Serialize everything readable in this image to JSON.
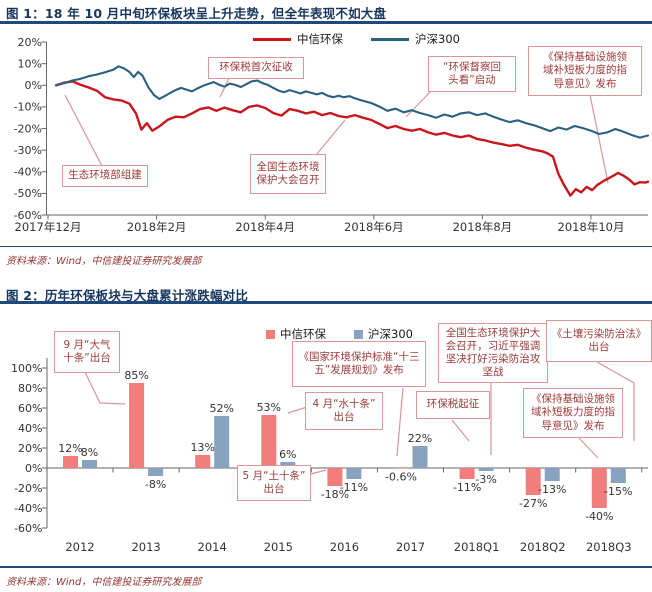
{
  "sources": {
    "fig1": "资料来源：Wind，中信建投证券研究发展部",
    "fig2": "资料来源：Wind，中信建投证券研究发展部"
  },
  "chart_data": [
    {
      "type": "line",
      "title": "图 1：18 年 10 月中旬环保板块呈上升走势，但全年表现不如大盘",
      "x_labels": [
        "2017年12月",
        "2018年2月",
        "2018年4月",
        "2018年6月",
        "2018年8月",
        "2018年10月"
      ],
      "y_ticks": [
        "20%",
        "10%",
        "0%",
        "-10%",
        "-20%",
        "-30%",
        "-40%",
        "-50%",
        "-60%"
      ],
      "ylim": [
        -60,
        20
      ],
      "legend_position": "top",
      "grid": false,
      "series": [
        {
          "name": "中信环保",
          "color": "#C8161D",
          "points": [
            [
              0.15,
              0
            ],
            [
              0.3,
              1.2
            ],
            [
              0.45,
              1.8
            ],
            [
              0.6,
              0.3
            ],
            [
              0.75,
              -1
            ],
            [
              0.9,
              -2.5
            ],
            [
              1.05,
              -5.5
            ],
            [
              1.2,
              -6.5
            ],
            [
              1.35,
              -7
            ],
            [
              1.5,
              -8.5
            ],
            [
              1.62,
              -13
            ],
            [
              1.72,
              -20.5
            ],
            [
              1.82,
              -17.5
            ],
            [
              1.92,
              -21
            ],
            [
              2.05,
              -19
            ],
            [
              2.2,
              -16
            ],
            [
              2.35,
              -14.5
            ],
            [
              2.5,
              -14.8
            ],
            [
              2.65,
              -13
            ],
            [
              2.8,
              -11
            ],
            [
              2.95,
              -10.2
            ],
            [
              3.1,
              -11.8
            ],
            [
              3.25,
              -10.3
            ],
            [
              3.4,
              -11.5
            ],
            [
              3.55,
              -12.5
            ],
            [
              3.7,
              -10
            ],
            [
              3.85,
              -9.3
            ],
            [
              4,
              -10.5
            ],
            [
              4.15,
              -12.8
            ],
            [
              4.3,
              -14
            ],
            [
              4.45,
              -11
            ],
            [
              4.6,
              -11.8
            ],
            [
              4.75,
              -13
            ],
            [
              4.9,
              -12.2
            ],
            [
              5.05,
              -13.8
            ],
            [
              5.2,
              -12.8
            ],
            [
              5.35,
              -14.2
            ],
            [
              5.5,
              -14.8
            ],
            [
              5.65,
              -13.8
            ],
            [
              5.8,
              -15
            ],
            [
              5.95,
              -16
            ],
            [
              6.1,
              -17.8
            ],
            [
              6.25,
              -19.8
            ],
            [
              6.4,
              -18.8
            ],
            [
              6.55,
              -20.2
            ],
            [
              6.7,
              -21
            ],
            [
              6.85,
              -20.2
            ],
            [
              7,
              -21.8
            ],
            [
              7.15,
              -22.8
            ],
            [
              7.3,
              -22
            ],
            [
              7.45,
              -23.2
            ],
            [
              7.6,
              -24
            ],
            [
              7.75,
              -23.2
            ],
            [
              7.9,
              -24.8
            ],
            [
              8.05,
              -25.5
            ],
            [
              8.2,
              -26.5
            ],
            [
              8.35,
              -27.2
            ],
            [
              8.5,
              -28
            ],
            [
              8.65,
              -27.5
            ],
            [
              8.8,
              -28.8
            ],
            [
              8.95,
              -29.8
            ],
            [
              9.1,
              -30.5
            ],
            [
              9.2,
              -31.5
            ],
            [
              9.3,
              -33
            ],
            [
              9.4,
              -41
            ],
            [
              9.5,
              -46
            ],
            [
              9.62,
              -51
            ],
            [
              9.72,
              -48
            ],
            [
              9.82,
              -49.5
            ],
            [
              9.92,
              -47
            ],
            [
              10.02,
              -48.5
            ],
            [
              10.12,
              -46
            ],
            [
              10.25,
              -44
            ],
            [
              10.4,
              -42
            ],
            [
              10.5,
              -40.5
            ],
            [
              10.6,
              -41.8
            ],
            [
              10.7,
              -43.5
            ],
            [
              10.8,
              -45.8
            ],
            [
              10.9,
              -44.8
            ],
            [
              11,
              -45
            ],
            [
              11.05,
              -44.6
            ]
          ]
        },
        {
          "name": "沪深300",
          "color": "#2B607F",
          "points": [
            [
              0.15,
              0
            ],
            [
              0.3,
              1
            ],
            [
              0.45,
              2.2
            ],
            [
              0.6,
              3
            ],
            [
              0.75,
              4.2
            ],
            [
              0.9,
              5
            ],
            [
              1.05,
              6
            ],
            [
              1.2,
              7.2
            ],
            [
              1.3,
              8.8
            ],
            [
              1.4,
              7.8
            ],
            [
              1.5,
              6.2
            ],
            [
              1.58,
              3.8
            ],
            [
              1.66,
              6.2
            ],
            [
              1.74,
              4.5
            ],
            [
              1.85,
              -1
            ],
            [
              1.95,
              -4.5
            ],
            [
              2.05,
              -6.3
            ],
            [
              2.15,
              -5
            ],
            [
              2.25,
              -3.5
            ],
            [
              2.35,
              -2.2
            ],
            [
              2.45,
              -1.2
            ],
            [
              2.55,
              -2
            ],
            [
              2.65,
              -2.8
            ],
            [
              2.75,
              -1.5
            ],
            [
              2.85,
              -0.3
            ],
            [
              2.95,
              0.6
            ],
            [
              3.05,
              1.5
            ],
            [
              3.15,
              0.3
            ],
            [
              3.25,
              -0.6
            ],
            [
              3.35,
              0.8
            ],
            [
              3.45,
              0.2
            ],
            [
              3.55,
              -0.8
            ],
            [
              3.65,
              0.5
            ],
            [
              3.75,
              1.8
            ],
            [
              3.85,
              2.2
            ],
            [
              3.95,
              1
            ],
            [
              4.05,
              0.2
            ],
            [
              4.15,
              -1.2
            ],
            [
              4.25,
              -2.5
            ],
            [
              4.35,
              -3.2
            ],
            [
              4.45,
              -2.2
            ],
            [
              4.55,
              -3
            ],
            [
              4.65,
              -3.8
            ],
            [
              4.75,
              -2.8
            ],
            [
              4.85,
              -3.5
            ],
            [
              4.95,
              -4.2
            ],
            [
              5.05,
              -3.5
            ],
            [
              5.15,
              -4.8
            ],
            [
              5.25,
              -5.5
            ],
            [
              5.35,
              -4.8
            ],
            [
              5.45,
              -5.5
            ],
            [
              5.55,
              -5
            ],
            [
              5.65,
              -6
            ],
            [
              5.75,
              -6.8
            ],
            [
              5.85,
              -7.5
            ],
            [
              5.95,
              -8.2
            ],
            [
              6.1,
              -9.8
            ],
            [
              6.25,
              -11.8
            ],
            [
              6.4,
              -10.8
            ],
            [
              6.55,
              -12.5
            ],
            [
              6.7,
              -11.5
            ],
            [
              6.85,
              -12.8
            ],
            [
              7,
              -13.8
            ],
            [
              7.15,
              -15
            ],
            [
              7.3,
              -13.5
            ],
            [
              7.45,
              -14.5
            ],
            [
              7.6,
              -13
            ],
            [
              7.75,
              -12.5
            ],
            [
              7.9,
              -13.8
            ],
            [
              8.05,
              -13
            ],
            [
              8.2,
              -14.5
            ],
            [
              8.35,
              -15.8
            ],
            [
              8.5,
              -17
            ],
            [
              8.65,
              -16.2
            ],
            [
              8.8,
              -17.5
            ],
            [
              8.95,
              -18.5
            ],
            [
              9.1,
              -19.8
            ],
            [
              9.25,
              -21.2
            ],
            [
              9.4,
              -19.5
            ],
            [
              9.55,
              -20.5
            ],
            [
              9.7,
              -18.8
            ],
            [
              9.85,
              -19.8
            ],
            [
              10,
              -21
            ],
            [
              10.15,
              -22.5
            ],
            [
              10.3,
              -21.8
            ],
            [
              10.45,
              -20.2
            ],
            [
              10.6,
              -21.5
            ],
            [
              10.75,
              -23
            ],
            [
              10.9,
              -24.2
            ],
            [
              11.05,
              -23.2
            ]
          ]
        }
      ],
      "annotations": [
        {
          "text": "生态环境部组建"
        },
        {
          "text": "环保税首次征收"
        },
        {
          "text": "全国生态环境\n保护大会召开"
        },
        {
          "text": "“环保督察回\n头看”启动"
        },
        {
          "text": "《保持基础设施领\n域补短板力度的指\n导意见》发布"
        }
      ]
    },
    {
      "type": "bar",
      "title": "图 2：历年环保板块与大盘累计涨跌幅对比",
      "categories": [
        "2012",
        "2013",
        "2014",
        "2015",
        "2016",
        "2017",
        "2018Q1",
        "2018Q2",
        "2018Q3"
      ],
      "y_ticks": [
        "100%",
        "80%",
        "60%",
        "40%",
        "20%",
        "0%",
        "-20%",
        "-40%",
        "-60%"
      ],
      "ylim": [
        -60,
        100
      ],
      "legend_position": "top",
      "grid": false,
      "series": [
        {
          "name": "中信环保",
          "color": "#F27D7D",
          "values": [
            12,
            85,
            13,
            53,
            -18,
            -0.6,
            -11,
            -27,
            -40
          ],
          "labels": [
            "12%",
            "85%",
            "13%",
            "53%",
            "-18%",
            "-0.6%",
            "-11%",
            "-27%",
            "-40%"
          ]
        },
        {
          "name": "沪深300",
          "color": "#87A3BF",
          "values": [
            8,
            -8,
            52,
            6,
            -11,
            22,
            -3,
            -13,
            -15
          ],
          "labels": [
            "8%",
            "-8%",
            "52%",
            "6%",
            "-11%",
            "22%",
            "-3%",
            "-13%",
            "-15%"
          ]
        }
      ],
      "annotations": [
        {
          "text": "9 月“大气\n十条”出台"
        },
        {
          "text": "《国家环境保护标准“十三\n五”发展规划》发布"
        },
        {
          "text": "全国生态环境保护大\n会召开，习近平强调\n坚决打好污染防治攻\n坚战"
        },
        {
          "text": "环保税起征"
        },
        {
          "text": "《土壤污染防治法》\n出台"
        },
        {
          "text": "《保持基础设施领\n域补短板力度的指\n导意见》发布"
        },
        {
          "text": "4 月“水十条”\n出台"
        },
        {
          "text": "5 月“土十条”\n出台"
        }
      ]
    }
  ]
}
